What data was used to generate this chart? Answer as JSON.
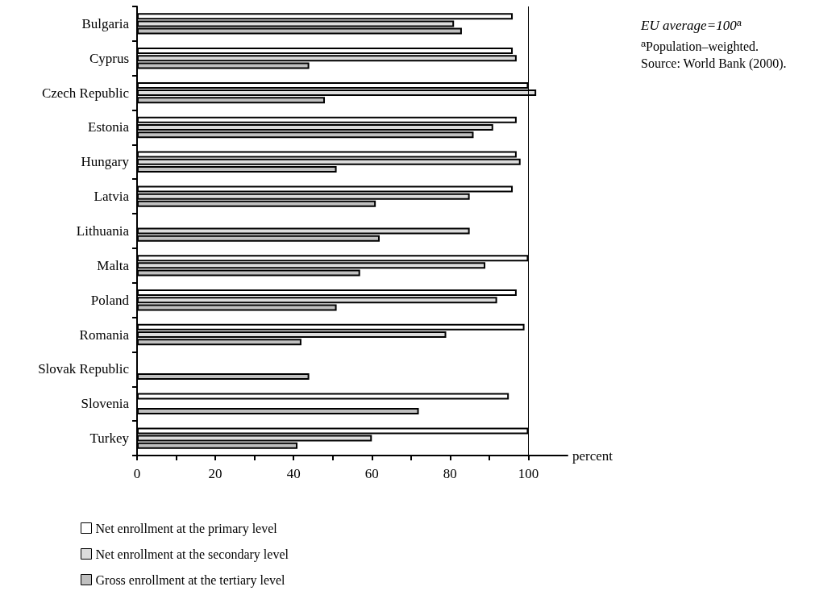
{
  "chart_data": {
    "type": "bar",
    "orientation": "horizontal",
    "xlabel": "percent",
    "categories": [
      "Bulgaria",
      "Cyprus",
      "Czech Republic",
      "Estonia",
      "Hungary",
      "Latvia",
      "Lithuania",
      "Malta",
      "Poland",
      "Romania",
      "Slovak Republic",
      "Slovenia",
      "Turkey"
    ],
    "series": [
      {
        "name": "Net enrollment at the primary level",
        "color": "#ffffff",
        "values": [
          96,
          96,
          100,
          97,
          97,
          96,
          null,
          100,
          97,
          99,
          null,
          95,
          100
        ]
      },
      {
        "name": "Net enrollment at the secondary level",
        "color": "#dcdcdc",
        "values": [
          81,
          97,
          102,
          91,
          98,
          85,
          85,
          89,
          92,
          79,
          null,
          null,
          60
        ]
      },
      {
        "name": "Gross enrollment at the tertiary level",
        "color": "#c0c0c0",
        "values": [
          83,
          44,
          48,
          86,
          51,
          61,
          62,
          57,
          51,
          42,
          44,
          72,
          41
        ]
      }
    ],
    "xlim": [
      0,
      110
    ],
    "xticks": [
      0,
      {
        "value": 10,
        "label": null
      },
      20,
      {
        "value": 30,
        "label": null
      },
      40,
      {
        "value": 50,
        "label": null
      },
      60,
      {
        "value": 70,
        "label": null
      },
      80,
      {
        "value": 90,
        "label": null
      },
      100
    ],
    "ref_lines": [
      {
        "axis": "x",
        "value": 100,
        "label": null,
        "color": "#000000",
        "line_style": "solid"
      }
    ],
    "annotations": [
      "EU average=100$^{a}$",
      "$^{a}$Population–weighted.",
      "Source: World Bank (2000)."
    ],
    "legend": "bottom left",
    "grid": false
  }
}
